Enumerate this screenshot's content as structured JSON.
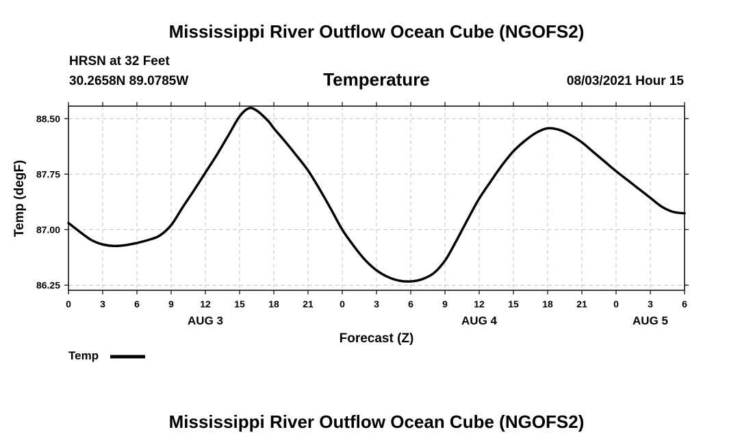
{
  "header": {
    "title": "Mississippi River Outflow Ocean Cube (NGOFS2)",
    "station": "HRSN at 32 Feet",
    "coords": "30.2658N  89.0785W",
    "variable": "Temperature",
    "datetime": "08/03/2021 Hour 15"
  },
  "footer": {
    "title": "Mississippi River Outflow Ocean Cube (NGOFS2)"
  },
  "legend": {
    "label": "Temp",
    "color": "#000000"
  },
  "chart_data": {
    "type": "line",
    "title": "Temperature",
    "xlabel": "Forecast (Z)",
    "ylabel": "Temp (degF)",
    "x_unit": "hours from 08/03 00Z",
    "xlim": [
      0,
      54
    ],
    "ylim": [
      86.18,
      88.67
    ],
    "x_ticks": [
      0,
      3,
      6,
      9,
      12,
      15,
      18,
      21,
      24,
      27,
      30,
      33,
      36,
      39,
      42,
      45,
      48,
      51,
      54
    ],
    "x_tick_labels": [
      "0",
      "3",
      "6",
      "9",
      "12",
      "15",
      "18",
      "21",
      "0",
      "3",
      "6",
      "9",
      "12",
      "15",
      "18",
      "21",
      "0",
      "3",
      "6"
    ],
    "y_ticks": [
      86.25,
      87.0,
      87.75,
      88.5
    ],
    "y_tick_labels": [
      "86.25",
      "87.00",
      "87.75",
      "88.50"
    ],
    "day_labels": [
      {
        "x": 12,
        "label": "AUG 3"
      },
      {
        "x": 36,
        "label": "AUG 4"
      },
      {
        "x": 51,
        "label": "AUG 5"
      }
    ],
    "grid": true,
    "series": [
      {
        "name": "Temp",
        "color": "#000000",
        "x": [
          0,
          1,
          2,
          3,
          4,
          5,
          6,
          7,
          8,
          9,
          10,
          11,
          12,
          13,
          14,
          15,
          15.8,
          16.5,
          17.5,
          18,
          19,
          20,
          21,
          22,
          23,
          24,
          25,
          26,
          27,
          28,
          29,
          30,
          31,
          32,
          33,
          34,
          35,
          36,
          37,
          38,
          39,
          40,
          41,
          42,
          43,
          44,
          45,
          46,
          47,
          48,
          49,
          50,
          51,
          52,
          53,
          54
        ],
        "values": [
          87.09,
          86.97,
          86.86,
          86.8,
          86.78,
          86.79,
          86.82,
          86.86,
          86.92,
          87.06,
          87.3,
          87.53,
          87.77,
          88.01,
          88.27,
          88.53,
          88.64,
          88.61,
          88.47,
          88.37,
          88.19,
          88.0,
          87.8,
          87.55,
          87.28,
          87.0,
          86.78,
          86.59,
          86.45,
          86.36,
          86.31,
          86.3,
          86.33,
          86.41,
          86.58,
          86.85,
          87.14,
          87.42,
          87.65,
          87.87,
          88.06,
          88.2,
          88.31,
          88.37,
          88.35,
          88.28,
          88.18,
          88.05,
          87.92,
          87.79,
          87.67,
          87.55,
          87.43,
          87.31,
          87.24,
          87.22
        ]
      }
    ]
  }
}
